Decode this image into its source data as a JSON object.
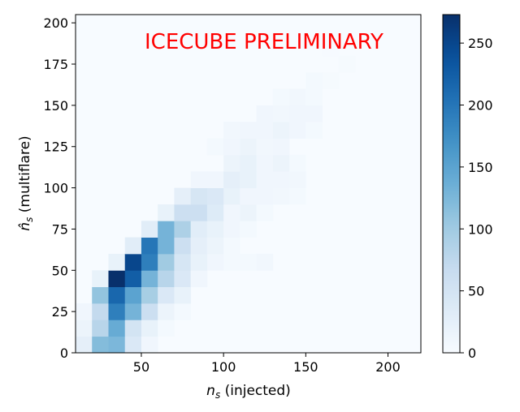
{
  "chart_data": {
    "type": "heatmap",
    "colormap": "Blues",
    "annotation": {
      "text": "ICECUBE PRELIMINARY",
      "color": "#ff0000"
    },
    "xlabel_main": "n",
    "xlabel_sub": "s",
    "xlabel_rest": " (injected)",
    "ylabel_main": "n̂",
    "ylabel_sub": "s",
    "ylabel_rest": " (multiflare)",
    "xlim": [
      10,
      220
    ],
    "ylim": [
      0,
      205
    ],
    "x_ticks": [
      50,
      100,
      150,
      200
    ],
    "y_ticks": [
      0,
      25,
      50,
      75,
      100,
      125,
      150,
      175,
      200
    ],
    "colorbar": {
      "min": 0,
      "max": 273,
      "ticks": [
        0,
        50,
        100,
        150,
        200,
        250
      ]
    },
    "bin_width": 10,
    "bin_height": 10,
    "x_bin_start": 10,
    "y_bin_start": 0,
    "cells": [
      [
        10,
        0,
        25
      ],
      [
        20,
        0,
        120
      ],
      [
        30,
        0,
        125
      ],
      [
        40,
        0,
        40
      ],
      [
        50,
        0,
        10
      ],
      [
        10,
        10,
        15
      ],
      [
        20,
        10,
        80
      ],
      [
        30,
        10,
        140
      ],
      [
        40,
        10,
        50
      ],
      [
        50,
        10,
        20
      ],
      [
        60,
        10,
        5
      ],
      [
        10,
        20,
        10
      ],
      [
        20,
        20,
        70
      ],
      [
        30,
        20,
        190
      ],
      [
        40,
        20,
        130
      ],
      [
        50,
        20,
        60
      ],
      [
        60,
        20,
        15
      ],
      [
        70,
        20,
        5
      ],
      [
        20,
        30,
        110
      ],
      [
        30,
        30,
        215
      ],
      [
        40,
        30,
        150
      ],
      [
        50,
        30,
        95
      ],
      [
        60,
        30,
        40
      ],
      [
        70,
        30,
        20
      ],
      [
        20,
        40,
        20
      ],
      [
        30,
        40,
        273
      ],
      [
        40,
        40,
        225
      ],
      [
        50,
        40,
        130
      ],
      [
        60,
        40,
        80
      ],
      [
        70,
        40,
        40
      ],
      [
        80,
        40,
        10
      ],
      [
        30,
        50,
        20
      ],
      [
        40,
        50,
        250
      ],
      [
        50,
        50,
        190
      ],
      [
        60,
        50,
        100
      ],
      [
        70,
        50,
        45
      ],
      [
        80,
        50,
        20
      ],
      [
        90,
        50,
        10
      ],
      [
        100,
        50,
        5
      ],
      [
        110,
        50,
        5
      ],
      [
        120,
        50,
        8
      ],
      [
        40,
        60,
        30
      ],
      [
        50,
        60,
        200
      ],
      [
        60,
        60,
        130
      ],
      [
        70,
        60,
        60
      ],
      [
        80,
        60,
        25
      ],
      [
        90,
        60,
        15
      ],
      [
        100,
        60,
        5
      ],
      [
        50,
        70,
        30
      ],
      [
        60,
        70,
        130
      ],
      [
        70,
        70,
        90
      ],
      [
        80,
        70,
        30
      ],
      [
        90,
        70,
        20
      ],
      [
        100,
        70,
        10
      ],
      [
        110,
        70,
        5
      ],
      [
        60,
        80,
        20
      ],
      [
        70,
        80,
        60
      ],
      [
        80,
        80,
        60
      ],
      [
        90,
        80,
        35
      ],
      [
        100,
        80,
        10
      ],
      [
        110,
        80,
        15
      ],
      [
        120,
        80,
        5
      ],
      [
        70,
        90,
        25
      ],
      [
        80,
        90,
        45
      ],
      [
        90,
        90,
        40
      ],
      [
        100,
        90,
        20
      ],
      [
        110,
        90,
        10
      ],
      [
        120,
        90,
        10
      ],
      [
        130,
        90,
        8
      ],
      [
        140,
        90,
        5
      ],
      [
        80,
        100,
        10
      ],
      [
        90,
        100,
        10
      ],
      [
        100,
        100,
        25
      ],
      [
        110,
        100,
        20
      ],
      [
        120,
        100,
        10
      ],
      [
        130,
        100,
        10
      ],
      [
        140,
        100,
        8
      ],
      [
        100,
        110,
        15
      ],
      [
        110,
        110,
        20
      ],
      [
        120,
        110,
        10
      ],
      [
        130,
        110,
        15
      ],
      [
        140,
        110,
        5
      ],
      [
        90,
        120,
        5
      ],
      [
        100,
        120,
        10
      ],
      [
        110,
        120,
        15
      ],
      [
        120,
        120,
        8
      ],
      [
        130,
        120,
        10
      ],
      [
        100,
        130,
        8
      ],
      [
        110,
        130,
        10
      ],
      [
        120,
        130,
        10
      ],
      [
        130,
        130,
        15
      ],
      [
        140,
        130,
        10
      ],
      [
        150,
        130,
        5
      ],
      [
        120,
        140,
        10
      ],
      [
        130,
        140,
        8
      ],
      [
        140,
        140,
        10
      ],
      [
        150,
        140,
        10
      ],
      [
        130,
        150,
        5
      ],
      [
        140,
        150,
        8
      ],
      [
        150,
        150,
        5
      ],
      [
        150,
        160,
        5
      ],
      [
        160,
        160,
        3
      ],
      [
        170,
        170,
        3
      ],
      [
        160,
        180,
        2
      ]
    ]
  }
}
